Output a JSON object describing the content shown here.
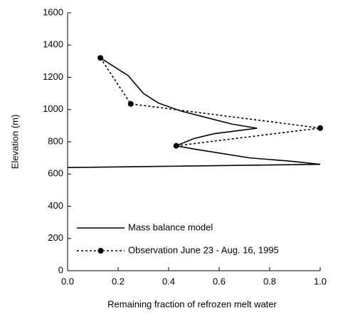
{
  "chart_data": {
    "type": "line",
    "xlabel": "Remaining fraction of refrozen melt water",
    "ylabel": "Elevation (m)",
    "xlim": [
      0,
      1
    ],
    "ylim": [
      0,
      1600
    ],
    "xticks": [
      {
        "value": 0,
        "label": "0.0"
      },
      0.2,
      0.4,
      0.6,
      0.8,
      {
        "value": 1,
        "label": "1.0"
      }
    ],
    "yticks": [
      0,
      200,
      400,
      600,
      800,
      1000,
      1200,
      1400,
      1600
    ],
    "legend": "lower left",
    "series": [
      {
        "name": "Mass balance model",
        "color": "#000000",
        "style": "solid",
        "x": [
          0.12,
          0.24,
          0.3,
          0.36,
          0.45,
          0.55,
          0.65,
          0.75,
          0.68,
          0.58,
          0.5,
          0.43,
          0.5,
          0.6,
          0.72,
          0.88,
          1.0,
          0.0
        ],
        "values": [
          1330,
          1210,
          1100,
          1040,
          990,
          950,
          910,
          884,
          870,
          850,
          820,
          775,
          755,
          730,
          700,
          680,
          660,
          640
        ]
      },
      {
        "name": "Observation June 23 - Aug. 16, 1995",
        "color": "#000000",
        "style": "dotted",
        "markers": true,
        "x": [
          0.13,
          0.25,
          1.0,
          0.43
        ],
        "values": [
          1320,
          1035,
          885,
          775
        ]
      }
    ]
  }
}
